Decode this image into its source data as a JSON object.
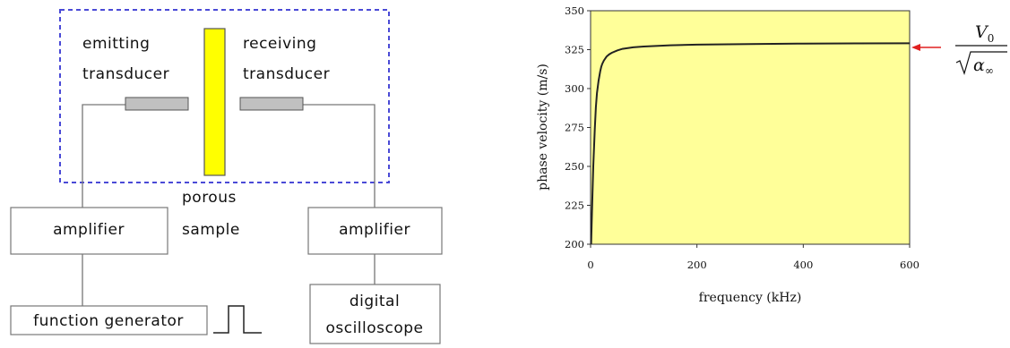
{
  "diagram": {
    "labels": {
      "emitting_line1": "emitting",
      "emitting_line2": "transducer",
      "receiving_line1": "receiving",
      "receiving_line2": "transducer",
      "sample_line1": "porous",
      "sample_line2": "sample",
      "amplifier_left": "amplifier",
      "amplifier_right": "amplifier",
      "function_generator": "function generator",
      "oscilloscope_line1": "digital",
      "oscilloscope_line2": "oscilloscope"
    },
    "colors": {
      "enclosure_dash": "#4a4ad6",
      "sample_fill": "#ffff00",
      "sample_stroke": "#555555",
      "transducer_fill": "#c0c0c0",
      "wire": "#777777"
    }
  },
  "chart_data": {
    "type": "line",
    "title": "",
    "xlabel": "frequency (kHz)",
    "ylabel": "phase velocity (m/s)",
    "xlim": [
      0,
      600
    ],
    "ylim": [
      200,
      350
    ],
    "xticks": [
      0,
      200,
      400,
      600
    ],
    "yticks": [
      200,
      225,
      250,
      275,
      300,
      325,
      350
    ],
    "plot_background": "#ffff99",
    "line_color": "#222222",
    "grid": false,
    "series": [
      {
        "x": [
          1,
          3,
          5,
          8,
          10,
          12,
          15,
          18,
          20,
          22,
          25,
          28,
          30,
          35,
          40,
          50,
          60,
          80,
          100,
          150,
          200,
          300,
          400,
          500,
          600
        ],
        "y": [
          200,
          226,
          250,
          274,
          288,
          297,
          305,
          311,
          314,
          316,
          318,
          319.5,
          320.5,
          322,
          323,
          324.5,
          325.5,
          326.5,
          327,
          327.8,
          328.2,
          328.6,
          328.9,
          329.0,
          329.1
        ]
      }
    ],
    "annotation": {
      "arrow_color": "#e02020",
      "numerator": "V",
      "numerator_sub": "0",
      "denominator": "α",
      "denominator_sub": "∞"
    }
  }
}
